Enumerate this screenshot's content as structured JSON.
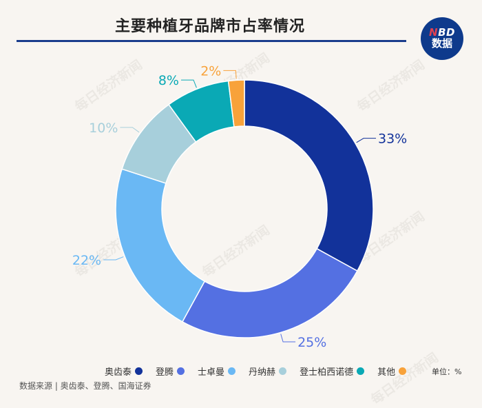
{
  "title": "主要种植牙品牌市占率情况",
  "logo": {
    "line1_prefix": "N",
    "line1_rest": "BD",
    "line2": "数据"
  },
  "watermark": "每日经济新闻",
  "unit_label": "单位：%",
  "source_label": "数据来源 | 奥齿泰、登腾、国海证券",
  "chart_data": {
    "type": "pie",
    "donut": true,
    "title": "主要种植牙品牌市占率情况",
    "unit": "%",
    "categories": [
      "奥齿泰",
      "登腾",
      "士卓曼",
      "丹纳赫",
      "登士柏西诺德",
      "其他"
    ],
    "values": [
      33,
      25,
      22,
      10,
      8,
      2
    ],
    "labels": [
      "33%",
      "25%",
      "22%",
      "10%",
      "8%",
      "2%"
    ],
    "colors": [
      "#12329a",
      "#5470e2",
      "#6ab8f4",
      "#a7cfdb",
      "#0aa9b5",
      "#f8a23a"
    ],
    "legend_position": "bottom"
  }
}
